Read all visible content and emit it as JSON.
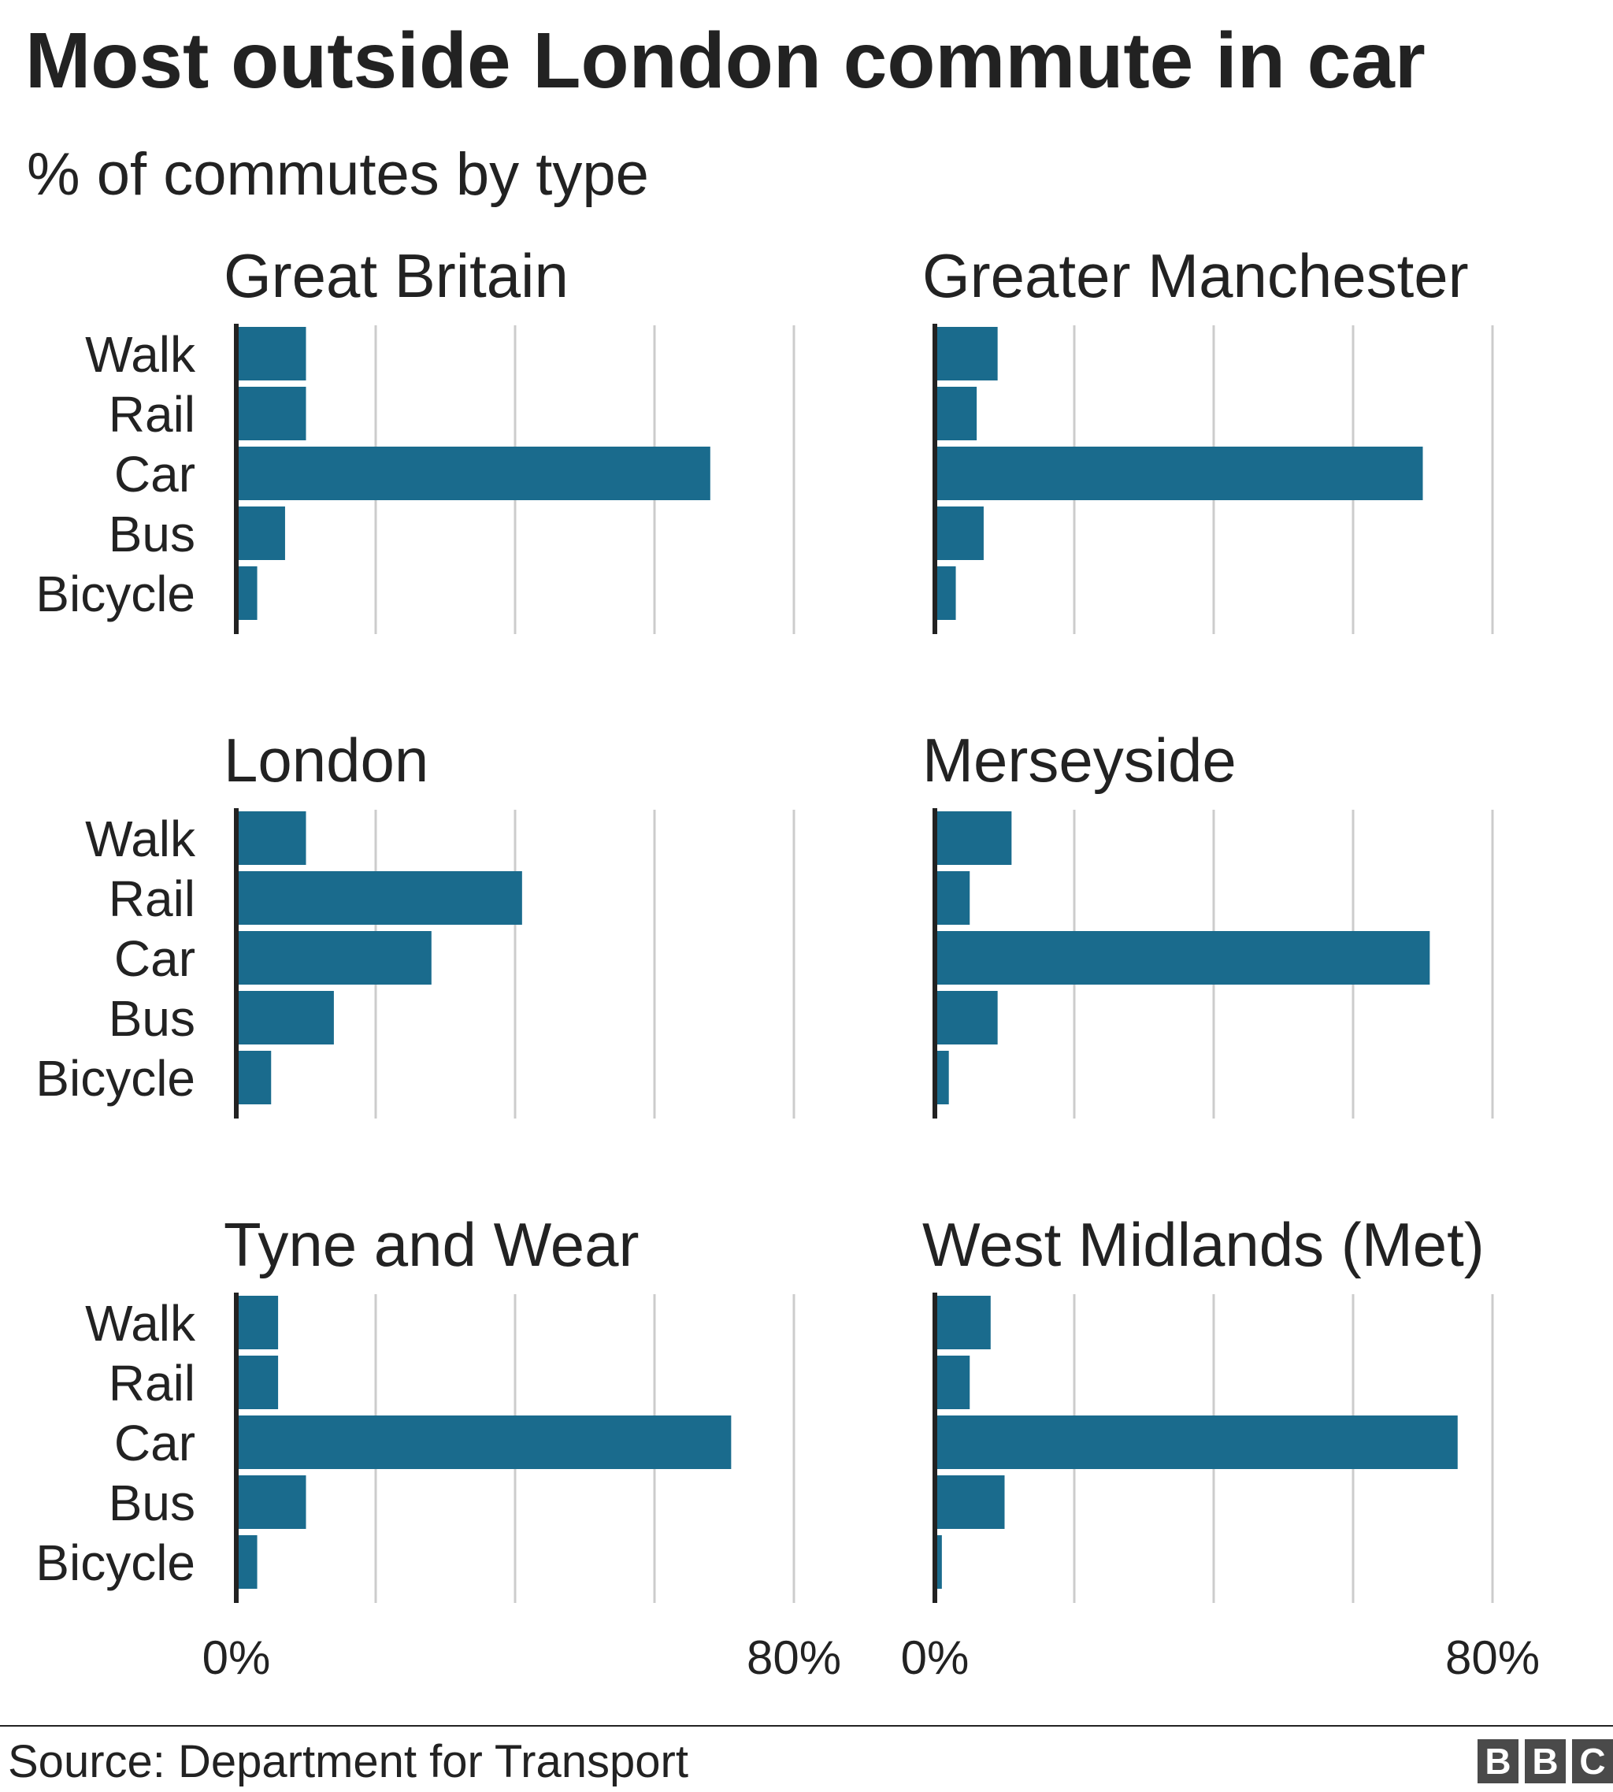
{
  "header": {
    "title": "Most outside London commute in car",
    "subtitle": "% of commutes by type"
  },
  "footer": {
    "source": "Source: Department for Transport",
    "logo": [
      "B",
      "B",
      "C"
    ]
  },
  "colors": {
    "bar": "#1a6b8d",
    "grid": "#cccccc",
    "axis": "#222222",
    "text": "#222222"
  },
  "chart_data": [
    {
      "type": "bar",
      "orientation": "horizontal",
      "title": "Great Britain",
      "categories": [
        "Walk",
        "Rail",
        "Car",
        "Bus",
        "Bicycle"
      ],
      "values": [
        10,
        10,
        68,
        7,
        3
      ],
      "xlim": [
        0,
        80
      ],
      "gridlines": [
        0,
        20,
        40,
        60,
        80
      ],
      "tick_labels": [
        "",
        ""
      ],
      "grid": true
    },
    {
      "type": "bar",
      "orientation": "horizontal",
      "title": "Greater Manchester",
      "categories": [
        "Walk",
        "Rail",
        "Car",
        "Bus",
        "Bicycle"
      ],
      "values": [
        9,
        6,
        70,
        7,
        3
      ],
      "xlim": [
        0,
        80
      ],
      "gridlines": [
        0,
        20,
        40,
        60,
        80
      ],
      "tick_labels": [
        "",
        ""
      ],
      "grid": true
    },
    {
      "type": "bar",
      "orientation": "horizontal",
      "title": "London",
      "categories": [
        "Walk",
        "Rail",
        "Car",
        "Bus",
        "Bicycle"
      ],
      "values": [
        10,
        41,
        28,
        14,
        5
      ],
      "xlim": [
        0,
        80
      ],
      "gridlines": [
        0,
        20,
        40,
        60,
        80
      ],
      "tick_labels": [
        "",
        ""
      ],
      "grid": true
    },
    {
      "type": "bar",
      "orientation": "horizontal",
      "title": "Merseyside",
      "categories": [
        "Walk",
        "Rail",
        "Car",
        "Bus",
        "Bicycle"
      ],
      "values": [
        11,
        5,
        71,
        9,
        2
      ],
      "xlim": [
        0,
        80
      ],
      "gridlines": [
        0,
        20,
        40,
        60,
        80
      ],
      "tick_labels": [
        "",
        ""
      ],
      "grid": true
    },
    {
      "type": "bar",
      "orientation": "horizontal",
      "title": "Tyne and Wear",
      "categories": [
        "Walk",
        "Rail",
        "Car",
        "Bus",
        "Bicycle"
      ],
      "values": [
        6,
        6,
        71,
        10,
        3
      ],
      "xlim": [
        0,
        80
      ],
      "gridlines": [
        0,
        20,
        40,
        60,
        80
      ],
      "tick_labels": [
        "0%",
        "80%"
      ],
      "grid": true
    },
    {
      "type": "bar",
      "orientation": "horizontal",
      "title": "West Midlands (Met)",
      "categories": [
        "Walk",
        "Rail",
        "Car",
        "Bus",
        "Bicycle"
      ],
      "values": [
        8,
        5,
        75,
        10,
        1
      ],
      "xlim": [
        0,
        80
      ],
      "gridlines": [
        0,
        20,
        40,
        60,
        80
      ],
      "tick_labels": [
        "0%",
        "80%"
      ],
      "grid": true
    }
  ]
}
